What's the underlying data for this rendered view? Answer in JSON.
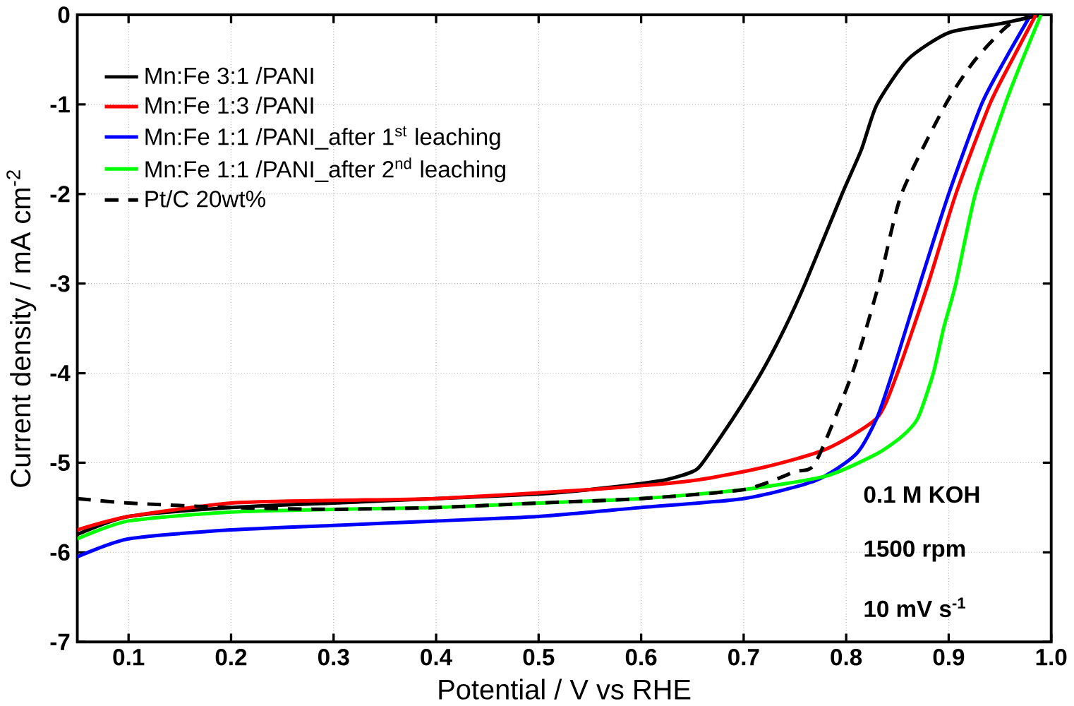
{
  "chart_data": {
    "type": "line",
    "xlabel": "Potential / V vs RHE",
    "ylabel": "Current density / mA cm$^{-2}$",
    "xlim": [
      0.05,
      1.0
    ],
    "xticks": [
      0.1,
      0.2,
      0.3,
      0.4,
      0.5,
      0.6,
      0.7,
      0.8,
      0.9,
      {
        "value": 1.0,
        "label": "1.0"
      }
    ],
    "ylim": [
      -7,
      0
    ],
    "yticks": [
      -7,
      -6,
      -5,
      -4,
      -3,
      -2,
      -1,
      0
    ],
    "grid": true,
    "legend": "top left",
    "marker": "none",
    "annotations": [
      "0.1 M KOH",
      "1500 rpm",
      "10 mV s$^{-1}$"
    ],
    "series": [
      {
        "name": "Mn:Fe 3:1 /PANI",
        "color": "#000000",
        "line_style": "solid",
        "x": [
          0.05,
          0.1,
          0.2,
          0.3,
          0.4,
          0.5,
          0.55,
          0.62,
          0.65,
          0.66,
          0.69,
          0.717,
          0.74,
          0.76,
          0.796,
          0.815,
          0.83,
          0.86,
          0.9,
          0.95,
          0.99
        ],
        "values": [
          -5.8,
          -5.6,
          -5.5,
          -5.45,
          -5.4,
          -5.35,
          -5.3,
          -5.2,
          -5.1,
          -5.0,
          -4.5,
          -4.0,
          -3.5,
          -3.0,
          -2.0,
          -1.5,
          -1.0,
          -0.5,
          -0.2,
          -0.1,
          0
        ]
      },
      {
        "name": "Mn:Fe 1:3 /PANI",
        "color": "#ff0000",
        "line_style": "solid",
        "x": [
          0.05,
          0.1,
          0.2,
          0.3,
          0.4,
          0.55,
          0.65,
          0.72,
          0.78,
          0.83,
          0.85,
          0.88,
          0.907,
          0.94,
          0.962,
          0.985
        ],
        "values": [
          -5.75,
          -5.6,
          -5.45,
          -5.42,
          -5.4,
          -5.3,
          -5.2,
          -5.05,
          -4.85,
          -4.5,
          -4.0,
          -3.0,
          -2.0,
          -1.0,
          -0.5,
          0
        ]
      },
      {
        "name": "Mn:Fe 1:1 /PANI_after 1$^{st}$ leaching",
        "color": "#0000ff",
        "line_style": "solid",
        "x": [
          0.05,
          0.1,
          0.2,
          0.3,
          0.4,
          0.5,
          0.6,
          0.7,
          0.77,
          0.81,
          0.83,
          0.845,
          0.872,
          0.9,
          0.932,
          0.955,
          0.98
        ],
        "values": [
          -6.05,
          -5.85,
          -5.75,
          -5.7,
          -5.65,
          -5.6,
          -5.5,
          -5.4,
          -5.2,
          -4.9,
          -4.5,
          -4.0,
          -3.0,
          -2.0,
          -1.0,
          -0.5,
          0
        ]
      },
      {
        "name": "Mn:Fe 1:1 /PANI_after 2$^{nd}$ leaching",
        "color": "#00ff00",
        "line_style": "solid",
        "x": [
          0.05,
          0.1,
          0.2,
          0.3,
          0.4,
          0.5,
          0.6,
          0.7,
          0.78,
          0.83,
          0.855,
          0.87,
          0.885,
          0.895,
          0.907,
          0.926,
          0.955,
          0.972,
          0.99
        ],
        "values": [
          -5.85,
          -5.65,
          -5.55,
          -5.52,
          -5.5,
          -5.45,
          -5.4,
          -5.3,
          -5.15,
          -4.9,
          -4.7,
          -4.5,
          -4.0,
          -3.5,
          -3.0,
          -2.0,
          -1.0,
          -0.5,
          0
        ]
      },
      {
        "name": "Pt/C 20wt%",
        "color": "#000000",
        "line_style": "dashed",
        "x": [
          0.05,
          0.1,
          0.2,
          0.3,
          0.4,
          0.5,
          0.6,
          0.7,
          0.75,
          0.77,
          0.806,
          0.832,
          0.854,
          0.897,
          0.926,
          0.96,
          0.99
        ],
        "values": [
          -5.4,
          -5.45,
          -5.5,
          -5.52,
          -5.5,
          -5.45,
          -5.4,
          -5.3,
          -5.1,
          -5.0,
          -4.0,
          -3.0,
          -2.0,
          -1.0,
          -0.5,
          -0.1,
          0
        ]
      }
    ]
  }
}
